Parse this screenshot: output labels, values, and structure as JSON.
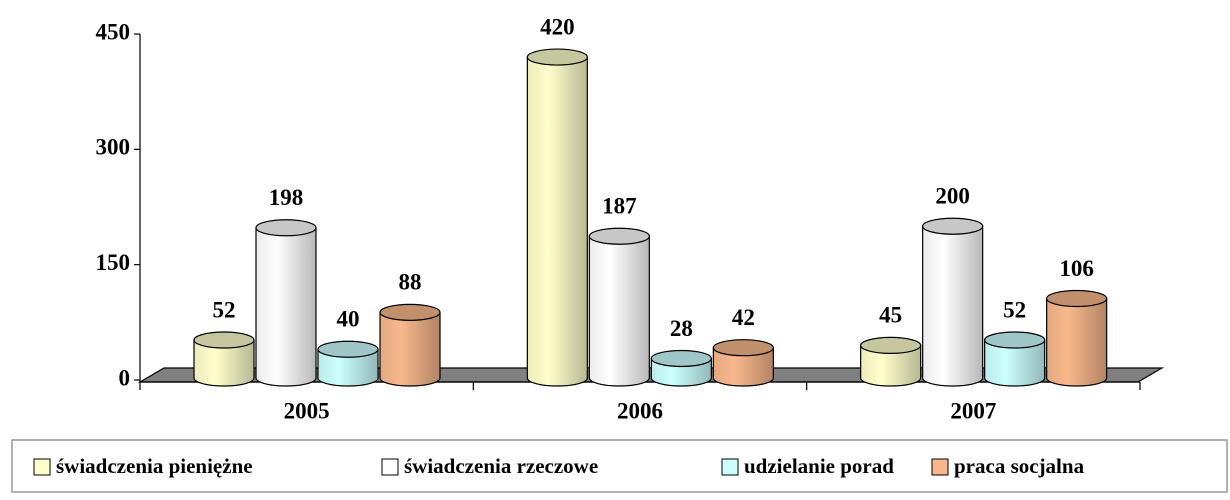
{
  "chart_data": {
    "type": "bar3d",
    "categories": [
      "2005",
      "2006",
      "2007"
    ],
    "series": [
      {
        "name": "świadczenia pieniężne",
        "color": "#ffffcc",
        "values": [
          52,
          420,
          45
        ]
      },
      {
        "name": "świadczenia rzeczowe",
        "color": "#ffffff",
        "values": [
          198,
          187,
          200
        ]
      },
      {
        "name": "udzielanie porad",
        "color": "#ccffff",
        "values": [
          40,
          28,
          52
        ]
      },
      {
        "name": "praca socjalna",
        "color": "#f8b88c",
        "values": [
          88,
          42,
          106
        ]
      }
    ],
    "ylim": [
      0,
      450
    ],
    "yticks": [
      0,
      150,
      300,
      450
    ],
    "legend": "bottom"
  }
}
